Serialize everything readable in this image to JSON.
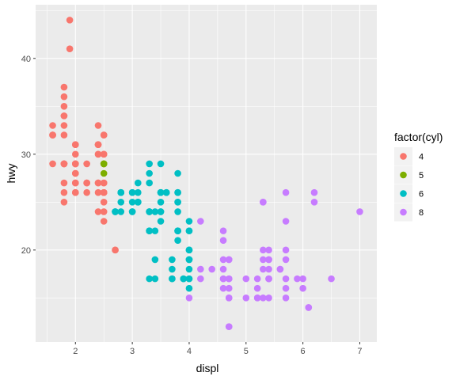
{
  "chart_data": {
    "type": "scatter",
    "xlabel": "displ",
    "ylabel": "hwy",
    "xlim": [
      1.3,
      7.3
    ],
    "ylim": [
      10.4,
      45.6
    ],
    "x_ticks": [
      2,
      3,
      4,
      5,
      6,
      7
    ],
    "y_ticks": [
      20,
      30,
      40
    ],
    "grid": true,
    "legend": {
      "title": "factor(cyl)",
      "position": "right",
      "entries": [
        "4",
        "5",
        "6",
        "8"
      ]
    },
    "colors": {
      "4": "#F8766D",
      "5": "#7CAE00",
      "6": "#00BFC4",
      "8": "#C77CFF",
      "panel": "#EBEBEB",
      "grid": "#FFFFFF"
    },
    "series": [
      {
        "name": "4",
        "points": [
          [
            1.8,
            29
          ],
          [
            1.8,
            29
          ],
          [
            2.0,
            31
          ],
          [
            2.0,
            30
          ],
          [
            1.8,
            26
          ],
          [
            1.8,
            25
          ],
          [
            2.0,
            28
          ],
          [
            2.0,
            27
          ],
          [
            2.0,
            26
          ],
          [
            2.4,
            30
          ],
          [
            2.4,
            33
          ],
          [
            2.5,
            32
          ],
          [
            2.5,
            32
          ],
          [
            2.2,
            27
          ],
          [
            2.2,
            29
          ],
          [
            2.4,
            27
          ],
          [
            2.4,
            31
          ],
          [
            2.4,
            31
          ],
          [
            1.8,
            37
          ],
          [
            1.8,
            35
          ],
          [
            1.8,
            29
          ],
          [
            2.0,
            29
          ],
          [
            2.4,
            24
          ],
          [
            2.5,
            29
          ],
          [
            2.5,
            23
          ],
          [
            2.5,
            24
          ],
          [
            2.5,
            26
          ],
          [
            2.5,
            26
          ],
          [
            2.5,
            25
          ],
          [
            2.5,
            27
          ],
          [
            2.4,
            26
          ],
          [
            2.7,
            20
          ],
          [
            2.7,
            20
          ],
          [
            1.8,
            29
          ],
          [
            1.8,
            27
          ],
          [
            2.0,
            31
          ],
          [
            2.0,
            29
          ],
          [
            2.0,
            26
          ],
          [
            2.0,
            27
          ],
          [
            1.9,
            44
          ],
          [
            1.9,
            41
          ],
          [
            1.8,
            34
          ],
          [
            1.8,
            36
          ],
          [
            1.8,
            32
          ],
          [
            1.8,
            33
          ],
          [
            2.0,
            28
          ],
          [
            2.0,
            29
          ],
          [
            2.0,
            29
          ],
          [
            2.0,
            28
          ],
          [
            1.6,
            33
          ],
          [
            1.6,
            32
          ],
          [
            1.6,
            32
          ],
          [
            1.6,
            29
          ],
          [
            1.6,
            32
          ],
          [
            1.8,
            34
          ],
          [
            2.4,
            30
          ],
          [
            2.4,
            27
          ],
          [
            2.5,
            30
          ],
          [
            2.5,
            30
          ],
          [
            2.2,
            26
          ],
          [
            2.2,
            27
          ],
          [
            2.4,
            31
          ],
          [
            2.5,
            26
          ],
          [
            2.5,
            27
          ]
        ]
      },
      {
        "name": "5",
        "points": [
          [
            2.5,
            29
          ],
          [
            2.5,
            28
          ],
          [
            2.5,
            29
          ],
          [
            2.5,
            29
          ]
        ]
      },
      {
        "name": "6",
        "points": [
          [
            2.8,
            26
          ],
          [
            2.8,
            26
          ],
          [
            3.1,
            27
          ],
          [
            3.1,
            25
          ],
          [
            2.8,
            25
          ],
          [
            3.1,
            25
          ],
          [
            3.1,
            25
          ],
          [
            3.8,
            26
          ],
          [
            3.8,
            25
          ],
          [
            4.0,
            23
          ],
          [
            4.0,
            20
          ],
          [
            3.0,
            26
          ],
          [
            3.6,
            26
          ],
          [
            3.3,
            22
          ],
          [
            3.3,
            22
          ],
          [
            3.3,
            24
          ],
          [
            3.8,
            24
          ],
          [
            3.8,
            22
          ],
          [
            4.0,
            22
          ],
          [
            3.3,
            24
          ],
          [
            3.3,
            24
          ],
          [
            3.3,
            22
          ],
          [
            3.8,
            21
          ],
          [
            3.8,
            22
          ],
          [
            4.0,
            18
          ],
          [
            3.7,
            19
          ],
          [
            3.7,
            18
          ],
          [
            3.9,
            17
          ],
          [
            3.9,
            17
          ],
          [
            3.7,
            17
          ],
          [
            4.0,
            17
          ],
          [
            4.0,
            19
          ],
          [
            4.0,
            17
          ],
          [
            4.0,
            20
          ],
          [
            4.0,
            20
          ],
          [
            4.0,
            19
          ],
          [
            4.0,
            16
          ],
          [
            3.5,
            26
          ],
          [
            3.5,
            25
          ],
          [
            3.5,
            24
          ],
          [
            3.5,
            24
          ],
          [
            3.4,
            19
          ],
          [
            3.4,
            17
          ],
          [
            3.3,
            17
          ],
          [
            2.7,
            24
          ],
          [
            2.7,
            24
          ],
          [
            3.4,
            22
          ],
          [
            3.4,
            24
          ],
          [
            2.7,
            24
          ],
          [
            4.0,
            22
          ],
          [
            3.0,
            25
          ],
          [
            3.0,
            26
          ],
          [
            3.0,
            24
          ],
          [
            3.5,
            29
          ],
          [
            3.5,
            26
          ],
          [
            3.6,
            26
          ],
          [
            2.8,
            24
          ],
          [
            3.5,
            23
          ],
          [
            3.5,
            26
          ],
          [
            3.0,
            24
          ],
          [
            3.8,
            26
          ],
          [
            3.8,
            28
          ],
          [
            3.8,
            25
          ],
          [
            3.3,
            27
          ],
          [
            3.3,
            29
          ],
          [
            3.3,
            28
          ],
          [
            3.8,
            22
          ],
          [
            3.8,
            22
          ],
          [
            4.0,
            19
          ],
          [
            2.8,
            26
          ],
          [
            3.1,
            26
          ],
          [
            3.7,
            17
          ]
        ]
      },
      {
        "name": "8",
        "points": [
          [
            5.7,
            26
          ],
          [
            5.7,
            23
          ],
          [
            6.2,
            26
          ],
          [
            6.2,
            25
          ],
          [
            7.0,
            24
          ],
          [
            5.3,
            20
          ],
          [
            5.3,
            15
          ],
          [
            5.7,
            20
          ],
          [
            6.5,
            17
          ],
          [
            5.2,
            17
          ],
          [
            5.2,
            15
          ],
          [
            5.7,
            17
          ],
          [
            5.9,
            17
          ],
          [
            4.7,
            17
          ],
          [
            4.7,
            12
          ],
          [
            4.7,
            12
          ],
          [
            5.2,
            16
          ],
          [
            5.2,
            15
          ],
          [
            4.6,
            17
          ],
          [
            5.4,
            18
          ],
          [
            5.4,
            17
          ],
          [
            4.2,
            23
          ],
          [
            4.2,
            18
          ],
          [
            4.6,
            19
          ],
          [
            4.6,
            18
          ],
          [
            4.6,
            22
          ],
          [
            4.6,
            16
          ],
          [
            4.6,
            17
          ],
          [
            5.4,
            20
          ],
          [
            5.4,
            19
          ],
          [
            5.4,
            17
          ],
          [
            4.7,
            19
          ],
          [
            4.7,
            19
          ],
          [
            5.3,
            25
          ],
          [
            5.3,
            25
          ],
          [
            5.7,
            19
          ],
          [
            6.1,
            14
          ],
          [
            5.4,
            15
          ],
          [
            4.2,
            17
          ],
          [
            4.4,
            18
          ],
          [
            5.0,
            17
          ],
          [
            5.6,
            18
          ],
          [
            5.7,
            15
          ],
          [
            5.0,
            15
          ],
          [
            5.3,
            18
          ],
          [
            4.7,
            17
          ],
          [
            4.7,
            16
          ],
          [
            4.7,
            15
          ],
          [
            4.7,
            15
          ],
          [
            5.6,
            18
          ],
          [
            5.4,
            17
          ],
          [
            6.0,
            17
          ],
          [
            4.6,
            21
          ],
          [
            5.4,
            19
          ],
          [
            4.0,
            15
          ],
          [
            5.7,
            16
          ],
          [
            5.3,
            19
          ],
          [
            6.1,
            14
          ],
          [
            6.0,
            16
          ]
        ]
      }
    ]
  }
}
